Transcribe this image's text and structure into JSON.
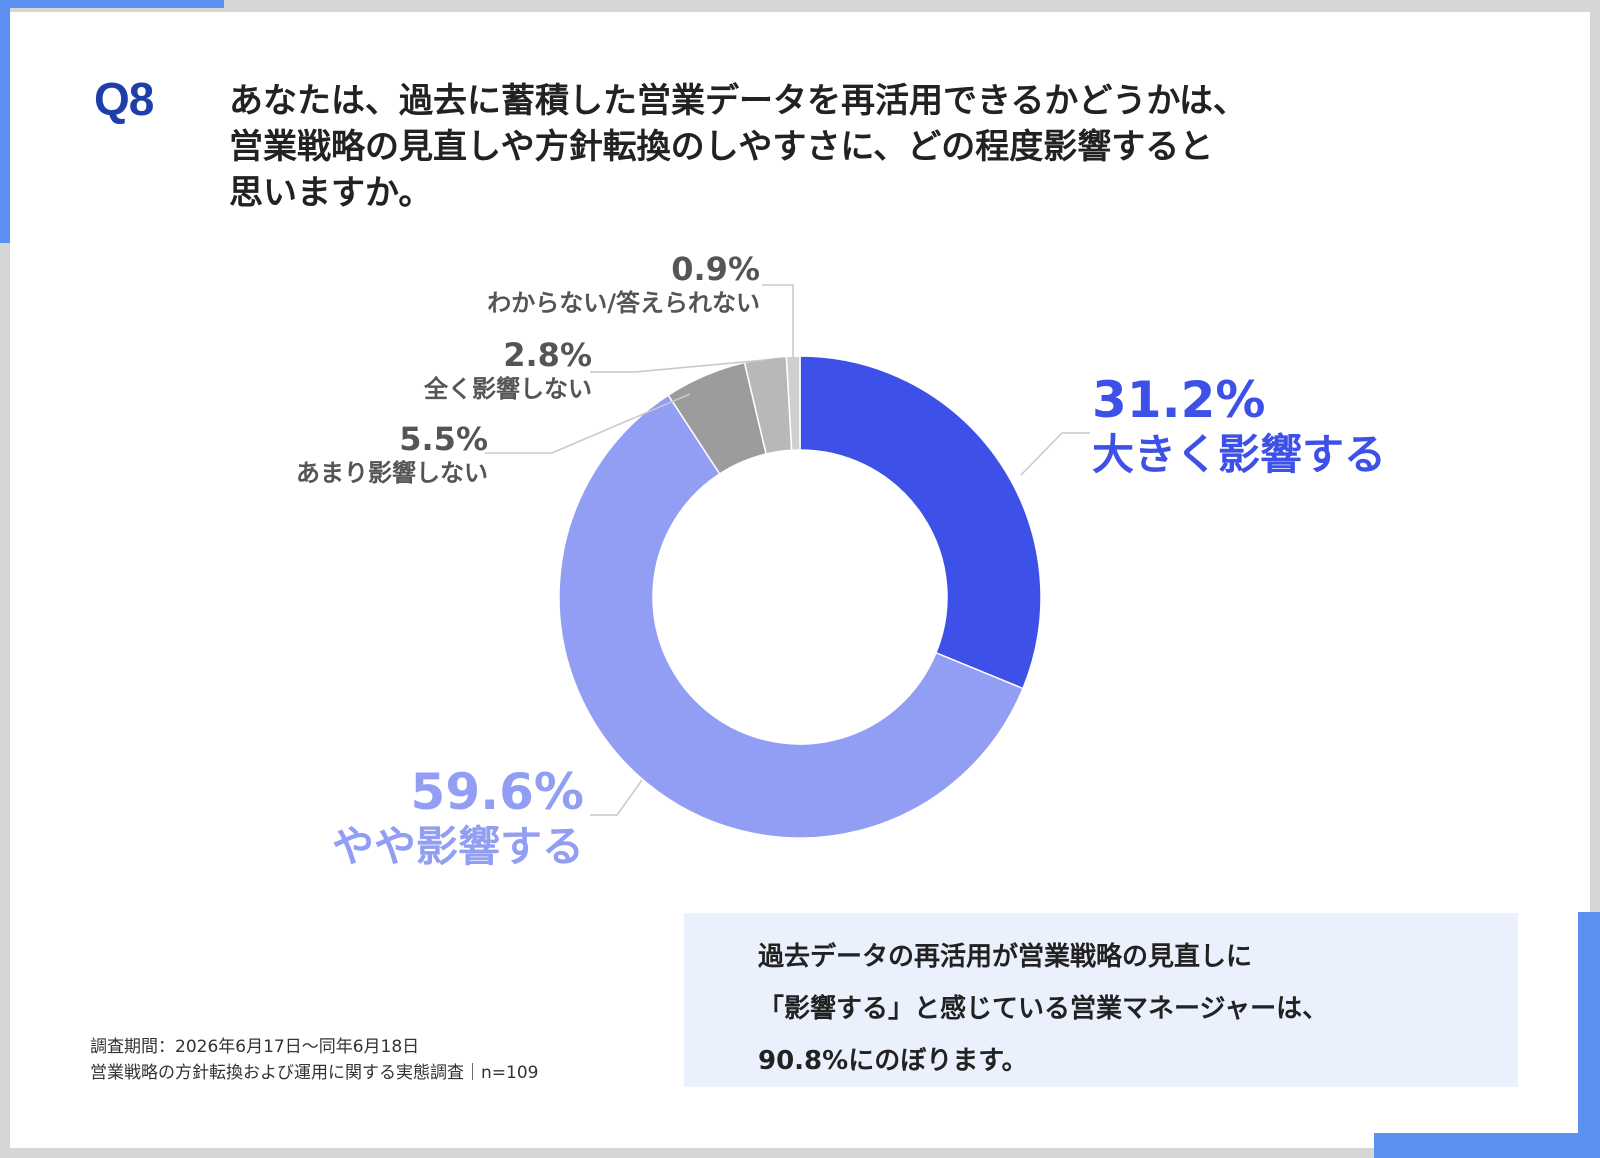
{
  "header": {
    "q_label": "Q8",
    "question_lines": [
      "あなたは、過去に蓄積した営業データを再活用できるかどうかは、",
      "営業戦略の見直しや方針転換のしやすさに、どの程度影響すると",
      "思いますか。"
    ]
  },
  "chart_data": {
    "type": "pie",
    "donut": true,
    "slices": [
      {
        "label": "大きく影響する",
        "value": 31.2,
        "value_label": "31.2%",
        "color": "#3d50e8"
      },
      {
        "label": "やや影響する",
        "value": 59.6,
        "value_label": "59.6%",
        "color": "#929ef3"
      },
      {
        "label": "あまり影響しない",
        "value": 5.5,
        "value_label": "5.5%",
        "color": "#9c9c9c"
      },
      {
        "label": "全く影響しない",
        "value": 2.8,
        "value_label": "2.8%",
        "color": "#b8b8b8"
      },
      {
        "label": "わからない/答えられない",
        "value": 0.9,
        "value_label": "0.9%",
        "color": "#cfcfcf"
      }
    ],
    "start": "12 o'clock",
    "direction": "clockwise"
  },
  "summary": {
    "lines": [
      "過去データの再活用が営業戦略の見直しに",
      "「影響する」と感じている営業マネージャーは、",
      "90.8%にのぼります。"
    ]
  },
  "footnote": {
    "lines": [
      "調査期間：2026年6月17日～同年6月18日",
      "営業戦略の方針転換および運用に関する実態調査｜n=109"
    ]
  },
  "colors": {
    "accent": "#5b8ff0",
    "q_label": "#1f3fa8",
    "summary_bg": "#eaf0fc"
  }
}
